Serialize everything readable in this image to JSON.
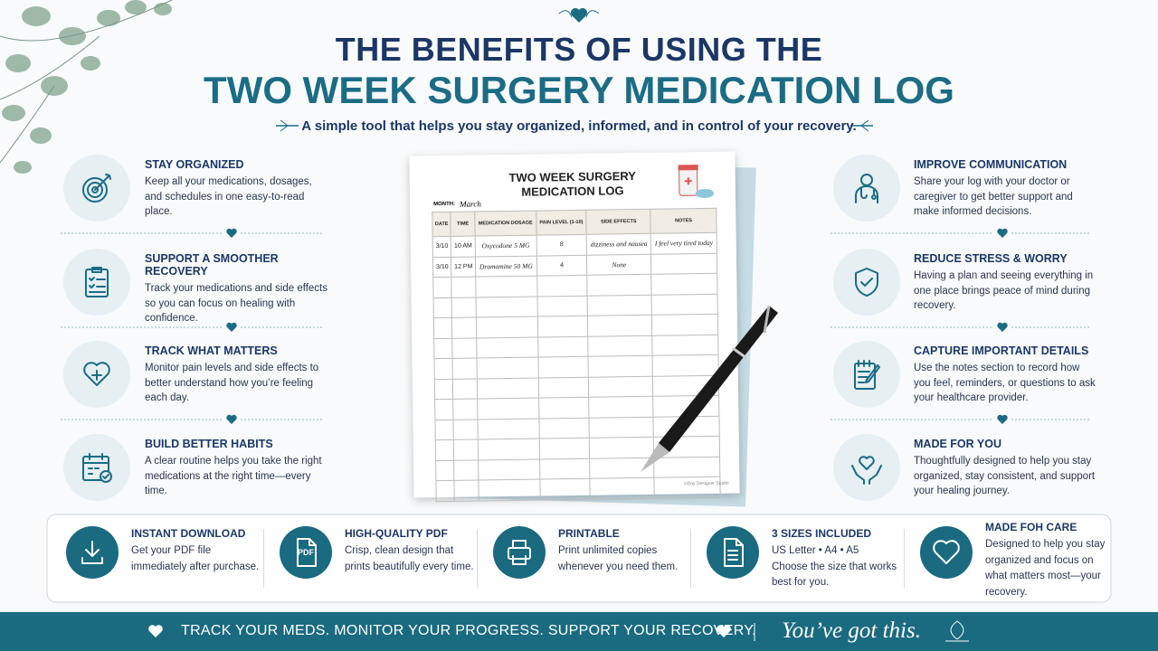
{
  "header": {
    "title_line1": "THE BENEFITS OF USING THE",
    "title_line2": "TWO WEEK SURGERY MEDICATION LOG",
    "subtitle": "A simple tool that helps you stay organized, informed, and in control of your recovery."
  },
  "left_benefits": [
    {
      "title": "STAY ORGANIZED",
      "text": "Keep all your medications, dosages, and schedules in one easy-to-read place."
    },
    {
      "title": "SUPPORT A SMOOTHER RECOVERY",
      "text": "Track your medications and side effects so you can focus on healing with confidence."
    },
    {
      "title": "TRACK WHAT MATTERS",
      "text": "Monitor pain levels and side effects to better understand how you’re feeling each day."
    },
    {
      "title": "BUILD BETTER HABITS",
      "text": "A clear routine helps you take the right medications at the right time—every time."
    }
  ],
  "right_benefits": [
    {
      "title": "IMPROVE COMMUNICATION",
      "text": "Share your log with your doctor or caregiver to get better support and make informed decisions."
    },
    {
      "title": "REDUCE STRESS & WORRY",
      "text": "Having a plan and seeing everything in one place brings peace of mind during recovery."
    },
    {
      "title": "CAPTURE IMPORTANT DETAILS",
      "text": "Use the notes section to record how you feel, reminders, or questions to ask your healthcare provider."
    },
    {
      "title": "MADE FOR YOU",
      "text": "Thoughtfully designed to help you stay organized, stay consistent, and support your healing journey."
    }
  ],
  "log_sheet": {
    "title_line1": "TWO WEEK SURGERY",
    "title_line2": "MEDICATION LOG",
    "month_label": "MONTH:",
    "month": "March",
    "columns": [
      "DATE",
      "TIME",
      "MEDICATION DOSAGE",
      "PAIN LEVEL (1-10)",
      "SIDE EFFECTS",
      "NOTES"
    ],
    "rows": [
      [
        "3/10",
        "10 AM",
        "Oxycodone 5 MG",
        "8",
        "dizziness and nausea",
        "I feel very tired today"
      ],
      [
        "3/10",
        "12 PM",
        "Dramamine 50 MG",
        "4",
        "None"
      ]
    ],
    "credit": "©Day Designer Studio"
  },
  "features": [
    {
      "title": "INSTANT DOWNLOAD",
      "text": "Get your PDF file immediately after purchase."
    },
    {
      "title": "HIGH-QUALITY PDF",
      "text": "Crisp, clean design that prints beautifully every time.",
      "icon_label": "PDF"
    },
    {
      "title": "PRINTABLE",
      "text": "Print unlimited copies whenever you need them."
    },
    {
      "title": "3 SIZES INCLUDED",
      "sizes": "US Letter • A4 • A5",
      "text": "Choose the size that works best for you."
    },
    {
      "title": "MADE FOH CARE",
      "text": "Designed to help you stay organized and focus on what matters most—your recovery."
    }
  ],
  "footer": {
    "tagline": "TRACK YOUR MEDS. MONITOR YOUR PROGRESS. SUPPORT YOUR RECOVERY.",
    "script": "You’ve got this."
  }
}
